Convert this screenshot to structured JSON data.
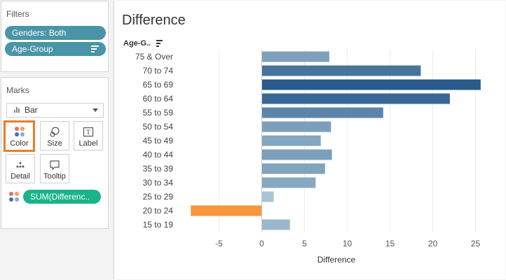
{
  "filters": {
    "title": "Filters",
    "items": [
      "Genders: Both",
      "Age-Group"
    ]
  },
  "marks": {
    "title": "Marks",
    "mark_type": "Bar",
    "buttons": {
      "color": "Color",
      "size": "Size",
      "label": "Label",
      "detail": "Detail",
      "tooltip": "Tooltip"
    },
    "field": "SUM(Differenc.."
  },
  "sheet": {
    "title": "Difference",
    "row_header": "Age-G.."
  },
  "colors": {
    "pill_filter": "#4a94a8",
    "pill_field": "#1ab38a",
    "highlight": "#ef7c2a",
    "negative_bar": "#f7953f"
  },
  "chart_data": {
    "type": "bar",
    "orientation": "horizontal",
    "categories": [
      "75 & Over",
      "70 to 74",
      "65 to 69",
      "60 to 64",
      "55 to 59",
      "50 to 54",
      "45 to 49",
      "40 to 44",
      "35 to 39",
      "30 to 34",
      "25 to 29",
      "20 to 24",
      "15 to 19"
    ],
    "values": [
      7.9,
      18.6,
      25.6,
      22.0,
      14.2,
      8.1,
      6.9,
      8.2,
      7.4,
      6.3,
      1.4,
      -8.3,
      3.3
    ],
    "xlabel": "Difference",
    "xlim": [
      -8.3,
      27.5
    ],
    "xticks": [
      -5,
      0,
      5,
      10,
      15,
      20,
      25
    ],
    "grid": true
  }
}
